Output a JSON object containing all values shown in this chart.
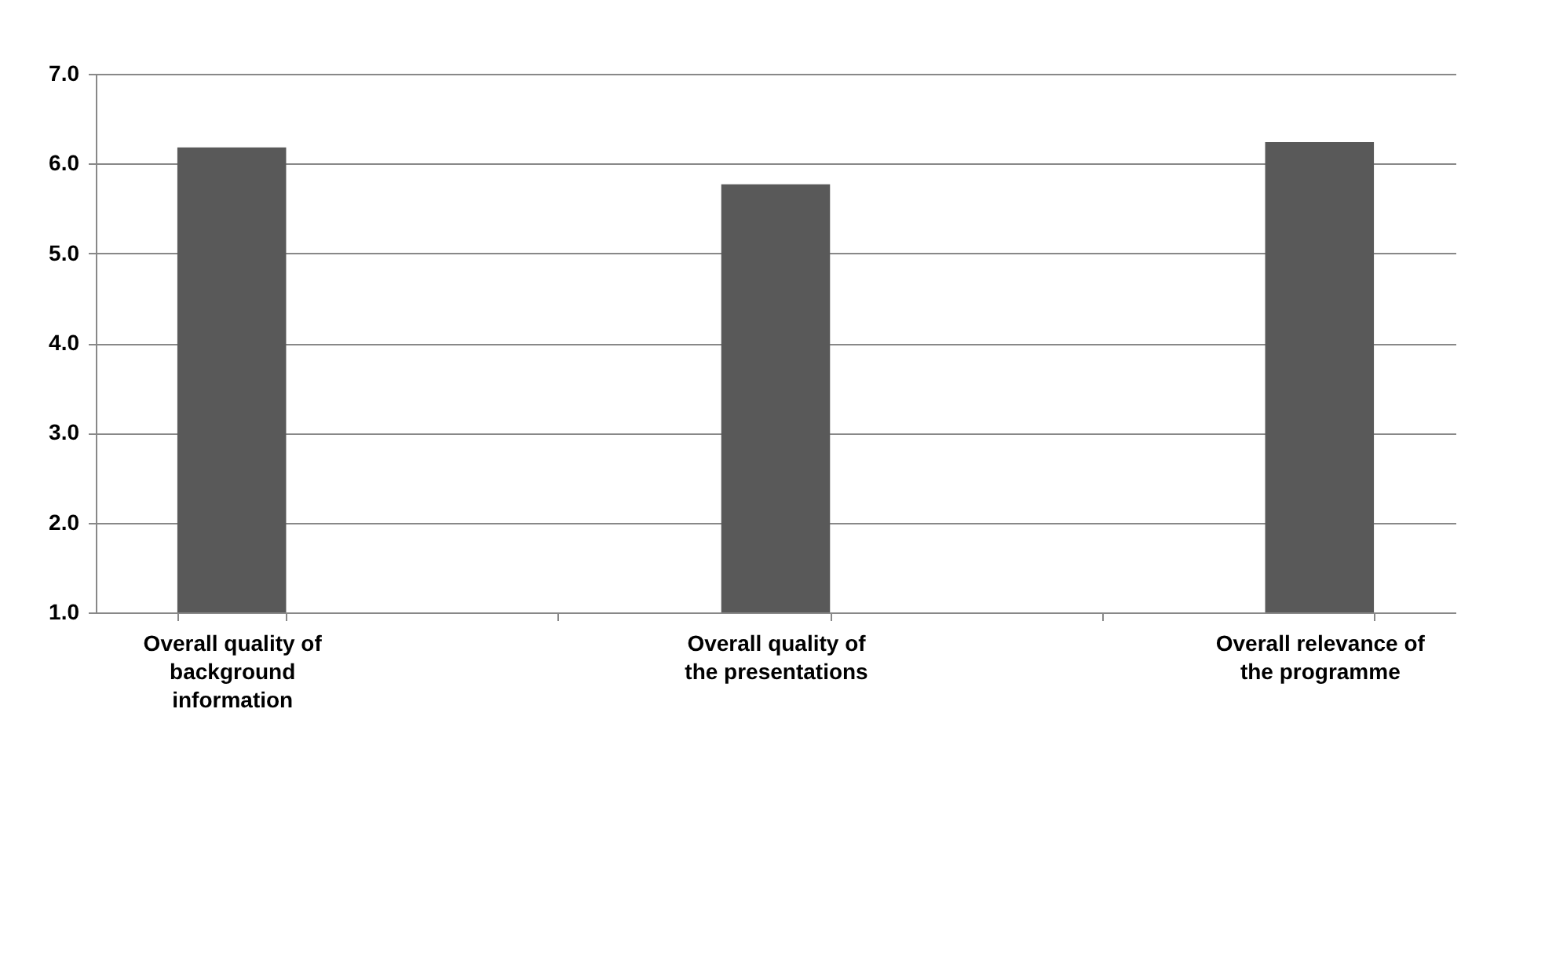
{
  "chart_data": {
    "type": "bar",
    "categories": [
      "Overall quality of background information",
      null,
      "Overall quality of the presentations",
      null,
      "Overall relevance of the programme"
    ],
    "values": [
      6.18,
      null,
      5.77,
      null,
      6.24
    ],
    "color": "#595959",
    "ylim": [
      1,
      7
    ],
    "yticks": [
      {
        "value": 1,
        "label": "1.0"
      },
      {
        "value": 2,
        "label": "2.0"
      },
      {
        "value": 3,
        "label": "3.0"
      },
      {
        "value": 4,
        "label": "4.0"
      },
      {
        "value": 5,
        "label": "5.0"
      },
      {
        "value": 6,
        "label": "6.0"
      },
      {
        "value": 7,
        "label": "7.0"
      }
    ],
    "grid": "y"
  }
}
